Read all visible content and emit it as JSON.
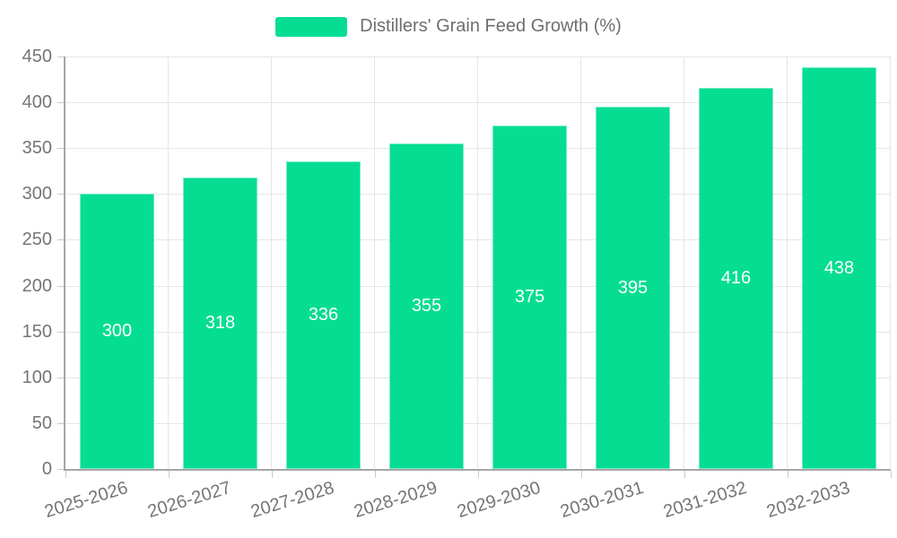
{
  "legend": {
    "label": "Distillers' Grain Feed Growth (%)"
  },
  "colors": {
    "bar": "#05DD92",
    "axis_line": "#a6a6a6",
    "grid": "#e6e6e6",
    "tick": "#c9c9c9",
    "axis_text": "#757575",
    "legend_text": "#6e6e6e",
    "value_text": "#ffffff",
    "background": "#ffffff"
  },
  "chart_data": {
    "type": "bar",
    "title": "",
    "xlabel": "",
    "ylabel": "",
    "categories": [
      "2025-2026",
      "2026-2027",
      "2027-2028",
      "2028-2029",
      "2029-2030",
      "2030-2031",
      "2031-2032",
      "2032-2033"
    ],
    "values": [
      300,
      318,
      336,
      355,
      375,
      395,
      416,
      438
    ],
    "series_name": "Distillers' Grain Feed Growth (%)",
    "ylim": [
      0,
      450
    ],
    "yticks": [
      0,
      50,
      100,
      150,
      200,
      250,
      300,
      350,
      400,
      450
    ],
    "grid": true,
    "bar_value_labels": [
      300,
      318,
      336,
      355,
      375,
      395,
      416,
      438
    ],
    "legend_position": "top-center",
    "xtick_rotation_deg": -17
  }
}
